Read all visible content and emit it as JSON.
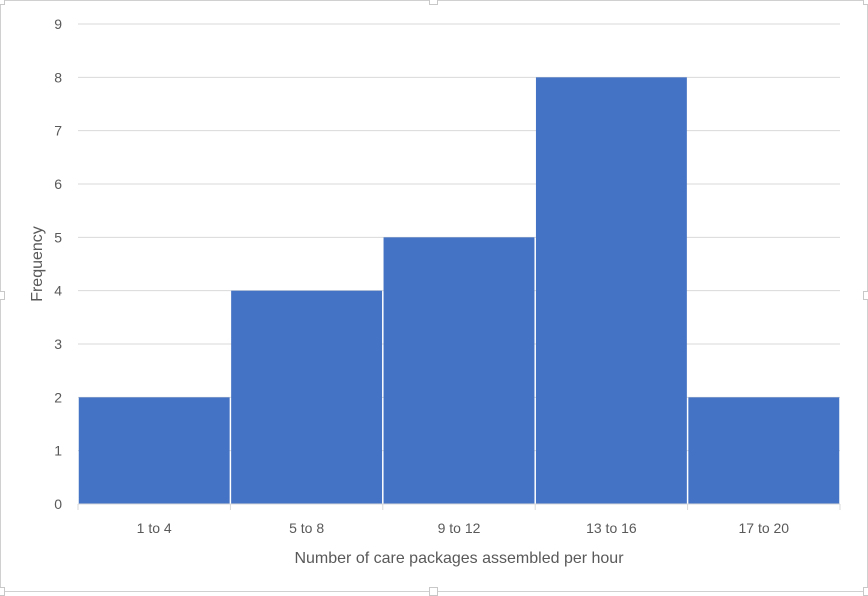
{
  "chart_data": {
    "type": "bar",
    "categories": [
      "1 to 4",
      "5 to 8",
      "9 to 12",
      "13 to 16",
      "17 to 20"
    ],
    "values": [
      2,
      4,
      5,
      8,
      2
    ],
    "xlabel": "Number of care packages assembled per hour",
    "ylabel": "Frequency",
    "ylim": [
      0,
      9
    ],
    "yticks": [
      0,
      1,
      2,
      3,
      4,
      5,
      6,
      7,
      8,
      9
    ],
    "grid": true,
    "legend": "none",
    "bar_color": "#4472C4",
    "gridline_color": "#D9D9D9",
    "text_color": "#595959"
  }
}
